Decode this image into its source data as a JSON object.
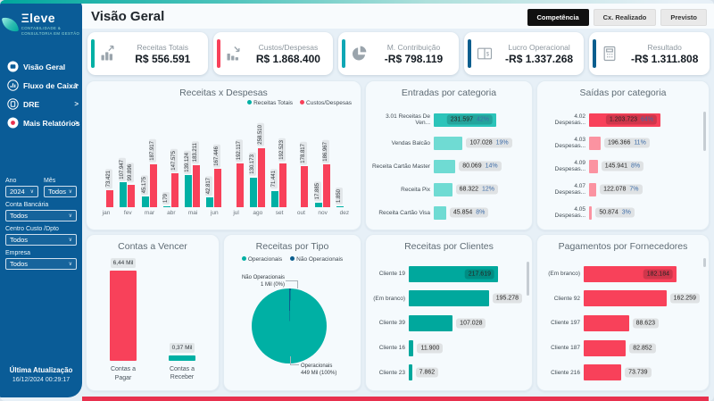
{
  "palette": {
    "teal": "#00B0A4",
    "teal_dark": "#2CC4BA",
    "teal_light": "#6FDBD3",
    "red": "#F8415A",
    "pink": "#FB93A1",
    "navy": "#0B5E8E",
    "sidebar_blue": "#0A5C97",
    "cyan": "#0FA7B5",
    "pct_blue": "#3E6DA8"
  },
  "sidebar": {
    "logo": {
      "text": "Ξleve",
      "subtitle1": "CONTABILIDADE &",
      "subtitle2": "CONSULTORIA EM GESTÃO"
    },
    "nav": [
      {
        "label": "Visão Geral",
        "icon": "dashboard-icon",
        "chevron": false
      },
      {
        "label": "Fluxo de Caixa",
        "icon": "cashflow-icon",
        "chevron": true
      },
      {
        "label": "DRE",
        "icon": "report-icon",
        "chevron": true
      },
      {
        "label": "Mais Relatórios",
        "icon": "more-reports-icon",
        "chevron": true
      }
    ],
    "filters": [
      {
        "label": "Ano",
        "value": "2024",
        "half": true
      },
      {
        "label": "Mês",
        "value": "Todos",
        "half": true
      },
      {
        "label": "Conta Bancária",
        "value": "Todos"
      },
      {
        "label": "Centro Custo /Dpto",
        "value": "Todos"
      },
      {
        "label": "Empresa",
        "value": "Todos"
      }
    ],
    "footer": {
      "title": "Última Atualização",
      "datetime": "16/12/2024 00:29:17"
    }
  },
  "header": {
    "title": "Visão Geral",
    "buttons": [
      {
        "label": "Competência",
        "active": true
      },
      {
        "label": "Cx. Realizado",
        "active": false
      },
      {
        "label": "Previsto",
        "active": false
      }
    ]
  },
  "kpis": [
    {
      "label": "Receitas Totais",
      "value": "R$ 556.591",
      "accent": "#00B0A4",
      "icon": "bars-up-icon"
    },
    {
      "label": "Custos/Despesas",
      "value": "R$ 1.868.400",
      "accent": "#F8415A",
      "icon": "bars-down-icon"
    },
    {
      "label": "M. Contribuição",
      "value": "-R$ 798.119",
      "accent": "#0FA7B5",
      "icon": "pie-icon"
    },
    {
      "label": "Lucro Operacional",
      "value": "-R$ 1.337.268",
      "accent": "#0B5E8E",
      "icon": "ledger-icon"
    },
    {
      "label": "Resultado",
      "value": "-R$ 1.311.808",
      "accent": "#0B5E8E",
      "icon": "calculator-icon"
    }
  ],
  "chart_data": [
    {
      "id": "receitas-despesas",
      "type": "bar",
      "title": "Receitas x Despesas",
      "categories": [
        "jan",
        "fev",
        "mar",
        "abr",
        "mai",
        "jun",
        "jul",
        "ago",
        "set",
        "out",
        "nov",
        "dez"
      ],
      "series": [
        {
          "name": "Receitas Totais",
          "color": "#00B0A4",
          "values": [
            null,
            107947,
            45175,
            179,
            139124,
            42817,
            null,
            130173,
            71441,
            null,
            17885,
            1850
          ]
        },
        {
          "name": "Custos/Despesas",
          "color": "#F8415A",
          "values": [
            73421,
            99896,
            187917,
            147575,
            183211,
            167446,
            192117,
            258510,
            192523,
            178817,
            186967,
            null
          ]
        }
      ],
      "ylim": [
        0,
        258510
      ],
      "grid": false,
      "legend_position": "top-right"
    },
    {
      "id": "entradas-categoria",
      "type": "bar-horizontal",
      "title": "Entradas por categoria",
      "categories": [
        "3.01 Receitas De Ven...",
        "Vendas Balcão",
        "Receita Cartão Master",
        "Receita Pix",
        "Receita Cartão Visa"
      ],
      "values": [
        231597,
        107028,
        80069,
        68322,
        45854
      ],
      "percents": [
        "42%",
        "19%",
        "14%",
        "12%",
        "8%"
      ],
      "bar_color_max": "#2CC4BA",
      "bar_color": "#6FDBD3"
    },
    {
      "id": "saidas-categoria",
      "type": "bar-horizontal",
      "title": "Saídas por categoria",
      "categories": [
        "4.02 Despesas...",
        "4.03 Despesas...",
        "4.09 Despesas...",
        "4.07 Despesas...",
        "4.05 Despesas..."
      ],
      "values": [
        1203723,
        196366,
        145941,
        122078,
        50874
      ],
      "percents": [
        "64%",
        "11%",
        "8%",
        "7%",
        "3%"
      ],
      "bar_color_max": "#F8415A",
      "bar_color": "#FB93A1"
    },
    {
      "id": "contas-a-vencer",
      "type": "bar",
      "title": "Contas a Vencer",
      "categories": [
        "Contas a Pagar",
        "Contas a Receber"
      ],
      "values": [
        6.44,
        0.37
      ],
      "value_labels": [
        "6,44 Mil",
        "0,37 Mil"
      ],
      "colors": [
        "#F8415A",
        "#00B0A4"
      ]
    },
    {
      "id": "receitas-por-tipo",
      "type": "pie",
      "title": "Receitas por Tipo",
      "slices": [
        {
          "label": "Operacionais",
          "value_label": "449 Mil (100%)",
          "percent": 100,
          "color": "#00B0A4"
        },
        {
          "label": "Não Operacionais",
          "value_label": "1 Mil (0%)",
          "percent": 0,
          "color": "#0B5E8E"
        }
      ],
      "legend_position": "top"
    },
    {
      "id": "receitas-por-clientes",
      "type": "bar-horizontal",
      "title": "Receitas por Clientes",
      "categories": [
        "Cliente 19",
        "(Em branco)",
        "Cliente 39",
        "Cliente 16",
        "Cliente 23"
      ],
      "values": [
        217619,
        195278,
        107028,
        11900,
        7862
      ],
      "bar_color_max": "#00A89D",
      "bar_color": "#00A89D"
    },
    {
      "id": "pagamentos-por-fornecedores",
      "type": "bar-horizontal",
      "title": "Pagamentos por Fornecedores",
      "categories": [
        "(Em branco)",
        "Cliente 92",
        "Cliente 197",
        "Cliente 187",
        "Cliente 216"
      ],
      "values": [
        182184,
        162259,
        88623,
        82852,
        73739
      ],
      "bar_color_max": "#F8415A",
      "bar_color": "#F8415A"
    }
  ]
}
